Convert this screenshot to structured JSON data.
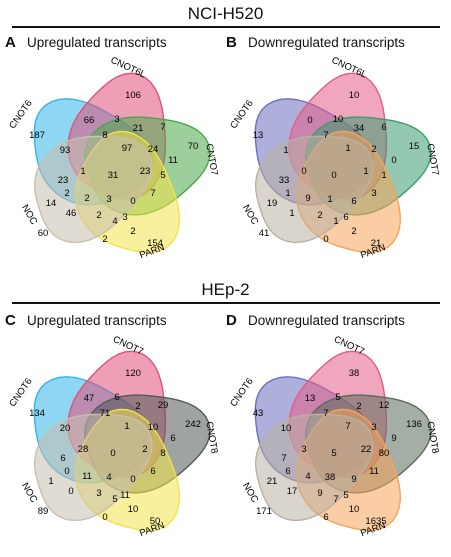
{
  "sections": [
    {
      "title": "NCI-H520"
    },
    {
      "title": "HEp-2"
    }
  ],
  "panels": [
    {
      "letter": "A",
      "title": "Upregulated transcripts",
      "sets": [
        {
          "label": "CNOT6",
          "color": "#33b4e8"
        },
        {
          "label": "CNOT6L",
          "color": "#e0507a"
        },
        {
          "label": "CNTO7",
          "color": "#4aa84a"
        },
        {
          "label": "PARN",
          "color": "#f3e34a"
        },
        {
          "label": "NOC",
          "color": "#c9c0ae"
        }
      ],
      "counts": [
        "187",
        "106",
        "70",
        "154",
        "60",
        "66",
        "3",
        "21",
        "7",
        "11",
        "93",
        "8",
        "97",
        "24",
        "5",
        "23",
        "1",
        "31",
        "23",
        "7",
        "14",
        "2",
        "2",
        "3",
        "0",
        "46",
        "2",
        "3",
        "2",
        "2",
        "4"
      ]
    },
    {
      "letter": "B",
      "title": "Downregulated transcripts",
      "sets": [
        {
          "label": "CNOT6",
          "color": "#6b6fbf"
        },
        {
          "label": "CNOT6L",
          "color": "#e35c86"
        },
        {
          "label": "CNOT7",
          "color": "#3e9b70"
        },
        {
          "label": "PARN",
          "color": "#f5a45a"
        },
        {
          "label": "NOC",
          "color": "#b9b1a3"
        }
      ],
      "counts": [
        "13",
        "10",
        "15",
        "21",
        "41",
        "0",
        "10",
        "34",
        "6",
        "0",
        "1",
        "7",
        "1",
        "2",
        "1",
        "33",
        "0",
        "0",
        "1",
        "3",
        "19",
        "1",
        "9",
        "1",
        "6",
        "1",
        "2",
        "6",
        "2",
        "0",
        "1"
      ]
    },
    {
      "letter": "C",
      "title": "Upregulated transcripts",
      "sets": [
        {
          "label": "CNOT6",
          "color": "#33b4e8"
        },
        {
          "label": "CNOT7",
          "color": "#e0507a"
        },
        {
          "label": "CNOT8",
          "color": "#505a58"
        },
        {
          "label": "PARN",
          "color": "#f3e34a"
        },
        {
          "label": "NOC",
          "color": "#c9c0ae"
        }
      ],
      "counts": [
        "134",
        "120",
        "242",
        "50",
        "89",
        "47",
        "6",
        "2",
        "29",
        "6",
        "20",
        "71",
        "1",
        "10",
        "8",
        "6",
        "28",
        "0",
        "2",
        "6",
        "1",
        "0",
        "11",
        "4",
        "0",
        "0",
        "3",
        "11",
        "10",
        "0",
        "5"
      ]
    },
    {
      "letter": "D",
      "title": "Downregulated transcripts",
      "sets": [
        {
          "label": "CNOT6",
          "color": "#6b6fbf"
        },
        {
          "label": "CNOT7",
          "color": "#e35c86"
        },
        {
          "label": "CNOT8",
          "color": "#5b6b5b"
        },
        {
          "label": "PARN",
          "color": "#f5a45a"
        },
        {
          "label": "NOC",
          "color": "#b9b1a3"
        }
      ],
      "counts": [
        "43",
        "38",
        "136",
        "1635",
        "171",
        "13",
        "5",
        "2",
        "12",
        "9",
        "10",
        "7",
        "7",
        "3",
        "80",
        "7",
        "3",
        "5",
        "22",
        "11",
        "21",
        "6",
        "4",
        "38",
        "9",
        "17",
        "9",
        "5",
        "10",
        "6",
        "7"
      ]
    }
  ]
}
